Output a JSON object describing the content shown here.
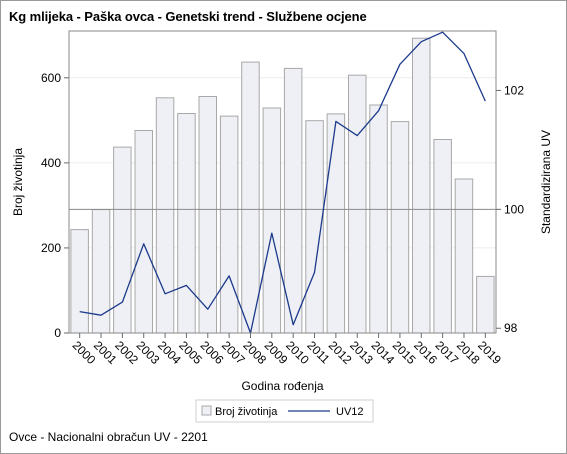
{
  "title": "Kg mlijeka - Paška ovca - Genetski trend - Službene ocjene",
  "footnote": "Ovce - Nacionalni obračun UV - 2201",
  "chart_data": {
    "type": "bar+line",
    "title": "Kg mlijeka - Paška ovca - Genetski trend - Službene ocjene",
    "xlabel": "Godina rođenja",
    "ylabel_left": "Broj životinja",
    "ylabel_right": "Standardizirana UV",
    "categories": [
      "2000",
      "2001",
      "2002",
      "2003",
      "2004",
      "2005",
      "2006",
      "2007",
      "2008",
      "2009",
      "2010",
      "2011",
      "2012",
      "2013",
      "2014",
      "2015",
      "2016",
      "2017",
      "2018",
      "2019"
    ],
    "y_left": {
      "range": [
        0,
        710
      ],
      "ticks": [
        0,
        200,
        400,
        600
      ],
      "tick_labels": [
        "0",
        "200",
        "400",
        "600"
      ]
    },
    "y_right": {
      "range": [
        97.92,
        103.0
      ],
      "ticks": [
        98,
        100,
        102
      ],
      "tick_labels": [
        "98",
        "100",
        "102"
      ]
    },
    "reference_line_right": 100,
    "legend_placement": "bottom",
    "series": [
      {
        "name": "Broj životinja",
        "kind": "bar",
        "axis": "left",
        "color": "#eef0f5",
        "border": "#a8a8a8",
        "values": [
          243,
          290,
          437,
          476,
          553,
          516,
          556,
          510,
          637,
          529,
          622,
          499,
          515,
          606,
          536,
          497,
          693,
          455,
          362,
          133
        ]
      },
      {
        "name": "UV12",
        "kind": "line",
        "axis": "right",
        "color": "#1c3a8c",
        "values": [
          98.28,
          98.22,
          98.44,
          99.42,
          98.58,
          98.72,
          98.32,
          98.88,
          97.92,
          99.6,
          98.06,
          98.94,
          101.48,
          101.24,
          101.66,
          102.44,
          102.82,
          102.98,
          102.62,
          101.82
        ]
      }
    ]
  }
}
